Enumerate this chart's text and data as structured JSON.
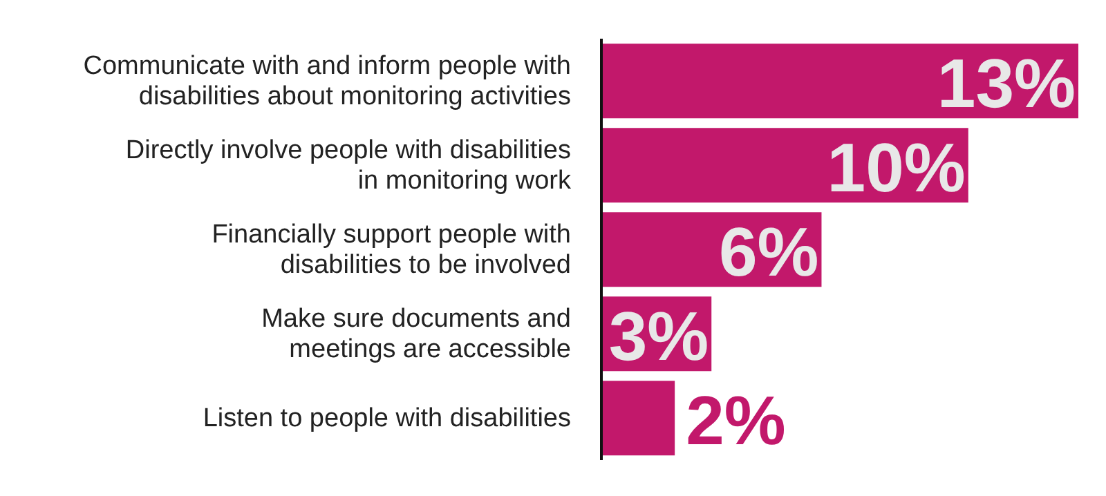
{
  "chart_data": {
    "type": "bar",
    "orientation": "horizontal",
    "categories": [
      "Communicate with and inform people with\ndisabilities about monitoring activities",
      "Directly involve people with disabilities\nin monitoring work",
      "Financially support people with\ndisabilities to be involved",
      "Make sure documents and\nmeetings are accessible",
      "Listen to people with disabilities"
    ],
    "values": [
      13,
      10,
      6,
      3,
      2
    ],
    "value_labels": [
      "13%",
      "10%",
      "6%",
      "3%",
      "2%"
    ],
    "color": "#c2186b",
    "tick_labels": "y"
  }
}
